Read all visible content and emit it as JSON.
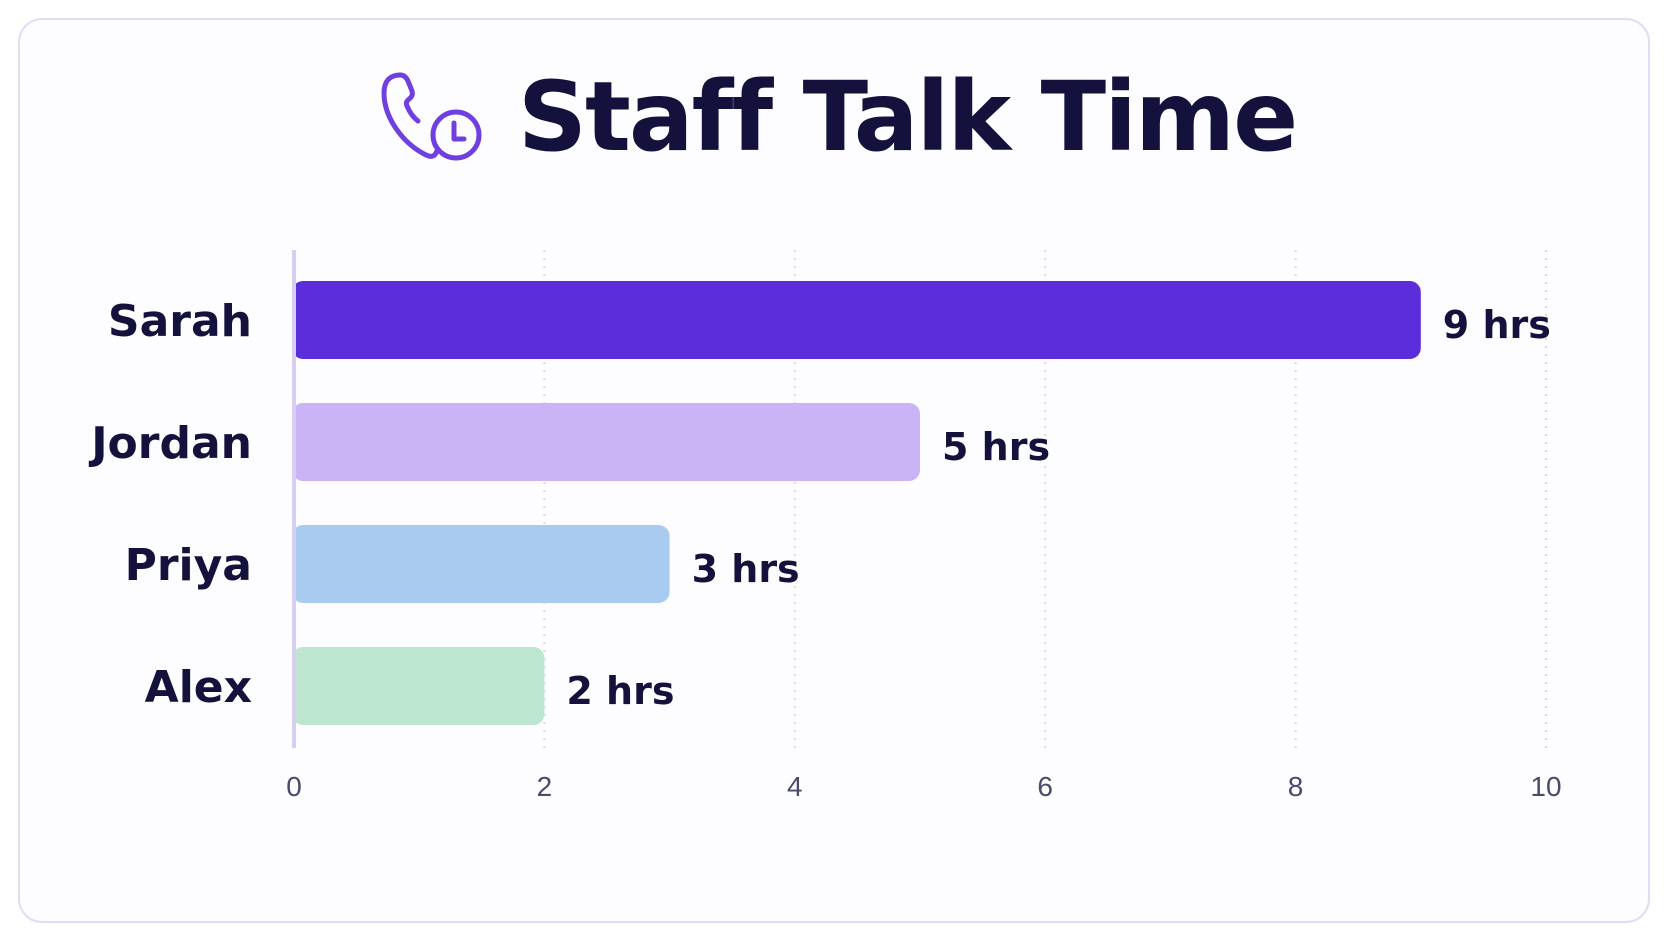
{
  "title": "Staff Talk Time",
  "icons": {
    "title_icon": "phone-clock-icon"
  },
  "colors": {
    "text": "#14123d",
    "tick_text": "#4a4a6a",
    "axis": "#d6cdf3",
    "grid": "#d9d6e6",
    "card_border": "#e2dcf6"
  },
  "chart_data": {
    "type": "bar",
    "orientation": "horizontal",
    "title": "Staff Talk Time",
    "categories": [
      "Sarah",
      "Jordan",
      "Priya",
      "Alex"
    ],
    "values": [
      9,
      5,
      3,
      2
    ],
    "data_labels": [
      "9 hrs",
      "5 hrs",
      "3 hrs",
      "2 hrs"
    ],
    "bar_colors": [
      "#5b2ddb",
      "#cbb4f6",
      "#a9cbf0",
      "#bde6d0"
    ],
    "xlim": [
      0,
      10
    ],
    "xticks": [
      0,
      2,
      4,
      6,
      8,
      10
    ],
    "xlabel": "",
    "ylabel": "",
    "grid": "vertical dotted",
    "legend": "none"
  }
}
